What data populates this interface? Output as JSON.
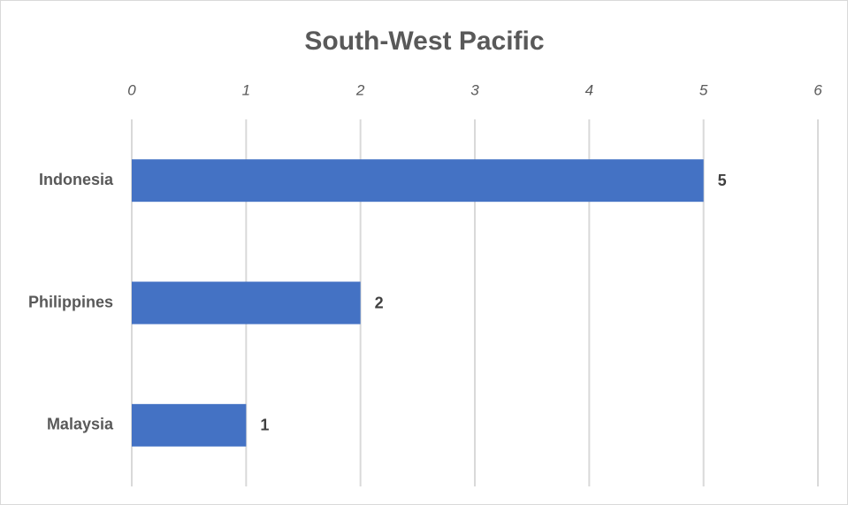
{
  "chart_data": {
    "type": "bar",
    "orientation": "horizontal",
    "title": "South-West Pacific",
    "categories": [
      "Indonesia",
      "Philippines",
      "Malaysia"
    ],
    "values": [
      5,
      2,
      1
    ],
    "color": "#4472c4",
    "xlim": [
      0,
      6
    ],
    "xticks": [
      0,
      1,
      2,
      3,
      4,
      5,
      6
    ],
    "grid": true
  }
}
